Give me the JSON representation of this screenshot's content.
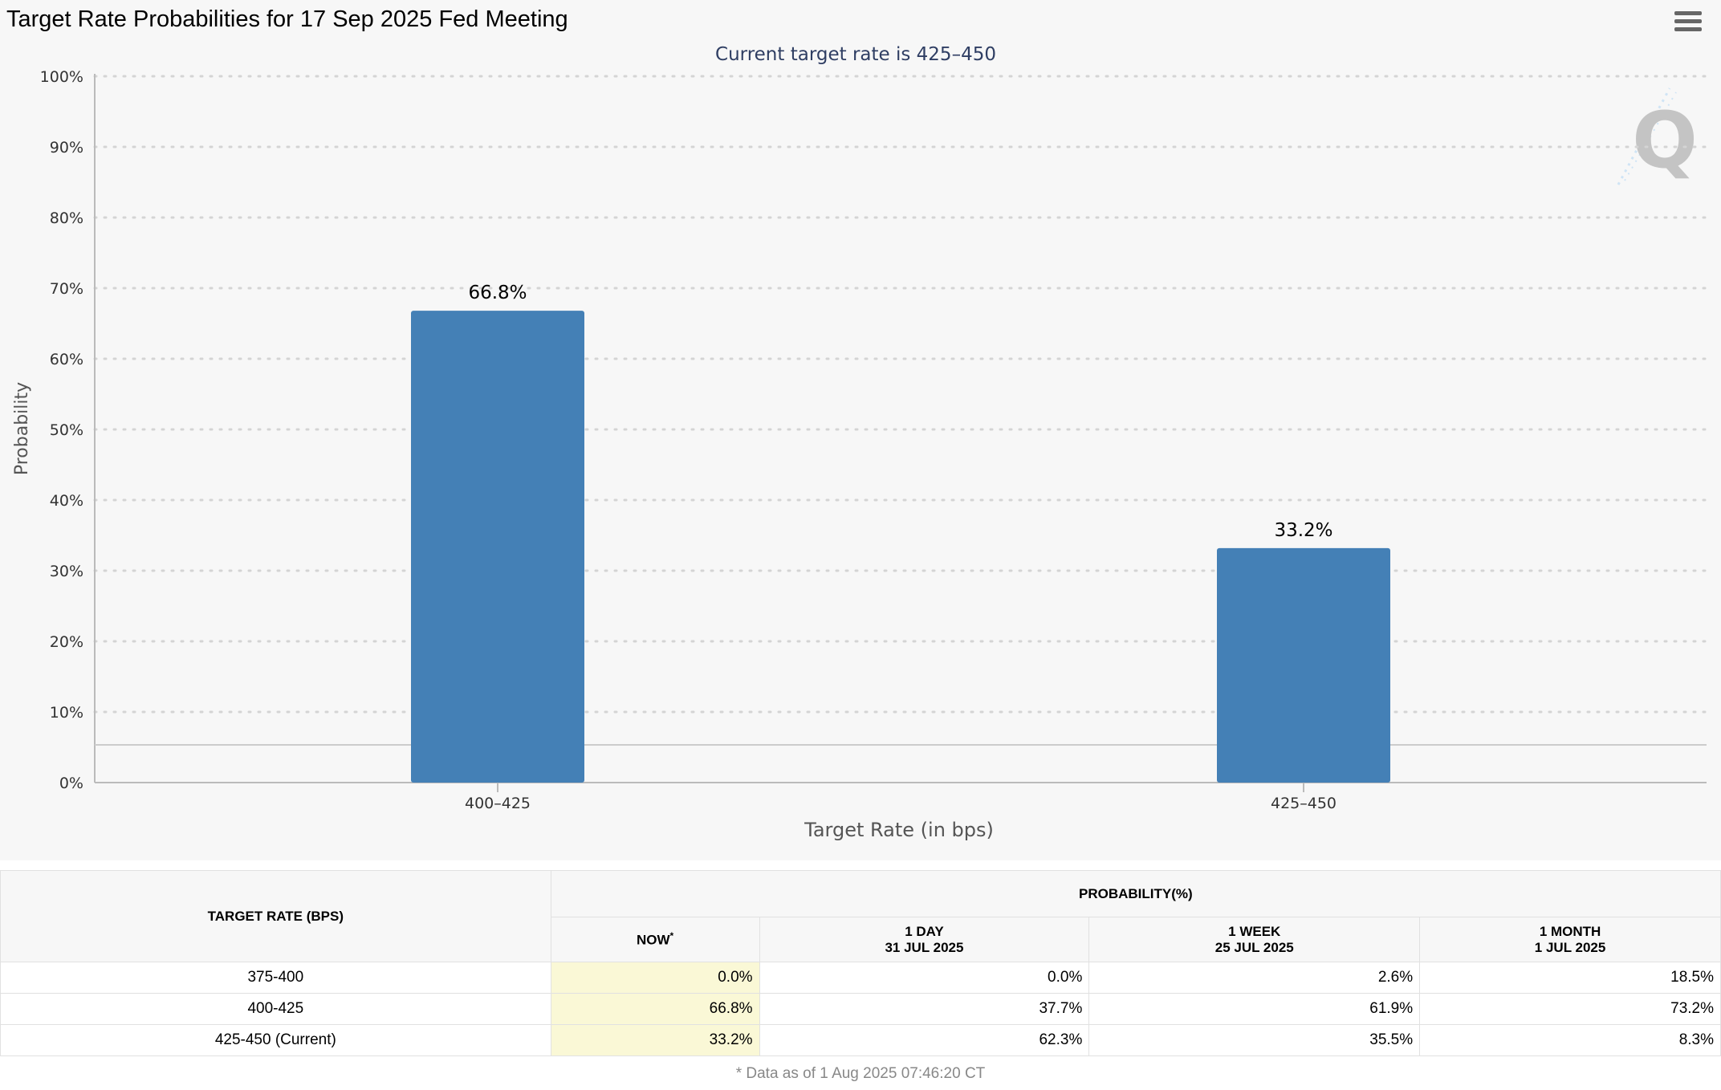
{
  "page": {
    "title": "Target Rate Probabilities for 17 Sep 2025 Fed Meeting"
  },
  "chart_data": {
    "type": "bar",
    "subtitle": "Current target rate is 425–450",
    "categories": [
      "400–425",
      "425–450"
    ],
    "values": [
      66.8,
      33.2
    ],
    "data_labels": [
      "66.8%",
      "33.2%"
    ],
    "xlabel": "Target Rate (in bps)",
    "ylabel": "Probability",
    "ylim": [
      0,
      100
    ],
    "yticks": [
      "0%",
      "10%",
      "20%",
      "30%",
      "40%",
      "50%",
      "60%",
      "70%",
      "80%",
      "90%",
      "100%"
    ],
    "grid": true,
    "bar_color": "#4480b6",
    "watermark": "Q"
  },
  "table": {
    "header_rate": "TARGET RATE (BPS)",
    "header_prob": "PROBABILITY(%)",
    "columns": [
      {
        "line1": "NOW",
        "sup": "*",
        "line2": ""
      },
      {
        "line1": "1 DAY",
        "sup": "",
        "line2": "31 JUL 2025"
      },
      {
        "line1": "1 WEEK",
        "sup": "",
        "line2": "25 JUL 2025"
      },
      {
        "line1": "1 MONTH",
        "sup": "",
        "line2": "1 JUL 2025"
      }
    ],
    "rows": [
      {
        "rate": "375-400",
        "values": [
          "0.0%",
          "0.0%",
          "2.6%",
          "18.5%"
        ]
      },
      {
        "rate": "400-425",
        "values": [
          "66.8%",
          "37.7%",
          "61.9%",
          "73.2%"
        ]
      },
      {
        "rate": "425-450 (Current)",
        "values": [
          "33.2%",
          "62.3%",
          "35.5%",
          "8.3%"
        ]
      }
    ],
    "highlight_color": "#faf8d6"
  },
  "footnote": "* Data as of 1 Aug 2025 07:46:20 CT"
}
